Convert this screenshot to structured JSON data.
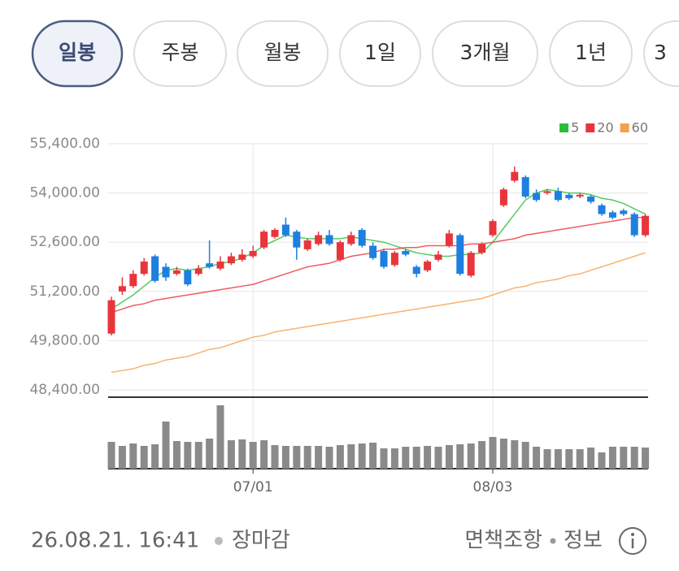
{
  "tabs": {
    "items": [
      "일봉",
      "주봉",
      "월봉",
      "1일",
      "3개월",
      "1년",
      "3"
    ],
    "selected": 0
  },
  "chart_data": {
    "type": "candlestick",
    "categories": [
      null,
      null,
      null,
      null,
      null,
      null,
      null,
      null,
      null,
      null,
      null,
      null,
      null,
      "07/01",
      null,
      null,
      null,
      null,
      null,
      null,
      null,
      null,
      null,
      null,
      null,
      null,
      null,
      null,
      null,
      null,
      null,
      null,
      null,
      null,
      null,
      "08/03",
      null,
      null,
      null,
      null,
      null,
      null,
      null,
      null,
      null,
      null,
      null,
      null,
      null,
      null
    ],
    "up_color": "#e8353b",
    "down_color": "#1d7fe0",
    "open": [
      50000,
      51200,
      51350,
      51700,
      52200,
      51900,
      51700,
      51800,
      51700,
      52000,
      51850,
      52000,
      52100,
      52200,
      52450,
      52750,
      53100,
      52900,
      52400,
      52550,
      52800,
      52100,
      52550,
      52950,
      52500,
      52350,
      51950,
      52350,
      51900,
      51800,
      52100,
      52500,
      52800,
      51650,
      52300,
      52800,
      53650,
      54350,
      54450,
      54000,
      54000,
      54050,
      53950,
      53900,
      53900,
      53650,
      53450,
      53500,
      53400,
      52800
    ],
    "high": [
      51050,
      51600,
      51800,
      52150,
      52250,
      52000,
      51900,
      51850,
      51950,
      52650,
      52200,
      52300,
      52400,
      52500,
      52950,
      53000,
      53300,
      52950,
      52700,
      52900,
      52950,
      52650,
      52900,
      53000,
      52600,
      52400,
      52350,
      52400,
      51950,
      52100,
      52350,
      52950,
      52850,
      52350,
      52600,
      53250,
      54150,
      54750,
      54500,
      54100,
      54100,
      54150,
      54000,
      54000,
      53950,
      53700,
      53500,
      53550,
      53450,
      53400
    ],
    "low": [
      49950,
      51100,
      51300,
      51650,
      51450,
      51500,
      51650,
      51350,
      51650,
      51850,
      51800,
      51950,
      52050,
      52150,
      52400,
      52700,
      52750,
      52100,
      52350,
      52500,
      52500,
      52050,
      52500,
      52450,
      52100,
      51850,
      51900,
      52200,
      51600,
      51750,
      52050,
      52450,
      51650,
      51600,
      52250,
      52750,
      53600,
      54300,
      53850,
      53750,
      53950,
      53750,
      53800,
      53850,
      53700,
      53350,
      53250,
      53350,
      52750,
      52750
    ],
    "close": [
      50950,
      51350,
      51700,
      52050,
      51500,
      51600,
      51800,
      51400,
      51850,
      51900,
      52050,
      52200,
      52250,
      52350,
      52900,
      52950,
      52800,
      52450,
      52650,
      52800,
      52550,
      52600,
      52800,
      52500,
      52150,
      51900,
      52300,
      52250,
      51700,
      52050,
      52250,
      52850,
      51700,
      52300,
      52550,
      53200,
      54100,
      54600,
      53900,
      53800,
      54050,
      53800,
      53850,
      53950,
      53750,
      53400,
      53300,
      53400,
      52800,
      53350
    ],
    "series": [
      {
        "name": "5",
        "color": "#2bbd3a",
        "values": [
          50700,
          50900,
          51100,
          51350,
          51600,
          51800,
          51850,
          51800,
          51850,
          51900,
          52000,
          52050,
          52150,
          52300,
          52500,
          52650,
          52800,
          52750,
          52700,
          52700,
          52700,
          52700,
          52750,
          52700,
          52650,
          52600,
          52500,
          52400,
          52300,
          52250,
          52200,
          52200,
          52250,
          52250,
          52300,
          52600,
          53000,
          53400,
          53800,
          54000,
          54100,
          54050,
          54000,
          54000,
          53950,
          53850,
          53800,
          53700,
          53550,
          53400
        ]
      },
      {
        "name": "20",
        "color": "#e8353b",
        "values": [
          50600,
          50700,
          50800,
          50850,
          50950,
          51000,
          51050,
          51100,
          51150,
          51200,
          51250,
          51300,
          51350,
          51400,
          51500,
          51600,
          51700,
          51800,
          51900,
          51950,
          52000,
          52100,
          52200,
          52250,
          52300,
          52400,
          52400,
          52450,
          52450,
          52500,
          52500,
          52500,
          52500,
          52550,
          52550,
          52600,
          52650,
          52700,
          52800,
          52850,
          52900,
          52950,
          53000,
          53050,
          53100,
          53150,
          53200,
          53250,
          53300,
          53300
        ]
      },
      {
        "name": "60",
        "color": "#f5a04a",
        "values": [
          48900,
          48950,
          49000,
          49100,
          49150,
          49250,
          49300,
          49350,
          49450,
          49550,
          49600,
          49700,
          49800,
          49900,
          49950,
          50050,
          50100,
          50150,
          50200,
          50250,
          50300,
          50350,
          50400,
          50450,
          50500,
          50550,
          50600,
          50650,
          50700,
          50750,
          50800,
          50850,
          50900,
          50950,
          51000,
          51100,
          51200,
          51300,
          51350,
          51450,
          51500,
          51550,
          51650,
          51700,
          51800,
          51900,
          52000,
          52100,
          52200,
          52300
        ]
      }
    ],
    "volume": {
      "color": "#8a8a8a",
      "values": [
        33,
        28,
        31,
        28,
        30,
        58,
        34,
        33,
        33,
        37,
        78,
        35,
        36,
        33,
        35,
        29,
        28,
        28,
        28,
        28,
        27,
        29,
        30,
        31,
        32,
        25,
        25,
        27,
        27,
        28,
        27,
        29,
        30,
        31,
        34,
        39,
        37,
        35,
        33,
        27,
        24,
        24,
        24,
        24,
        26,
        20,
        27,
        27,
        27,
        26
      ]
    },
    "ylim": [
      48400,
      55400
    ],
    "yticks": [
      {
        "value": 48400,
        "label": "48,400.00"
      },
      {
        "value": 49800,
        "label": "49,800.00"
      },
      {
        "value": 51200,
        "label": "51,200.00"
      },
      {
        "value": 52600,
        "label": "52,600.00"
      },
      {
        "value": 54000,
        "label": "54,000.00"
      },
      {
        "value": 55400,
        "label": "55,400.00"
      }
    ],
    "grid": true,
    "legend": "top-right"
  },
  "footer": {
    "timestamp": "26.08.21. 16:41",
    "status": "장마감",
    "links": [
      "면책조항",
      "정보"
    ]
  }
}
